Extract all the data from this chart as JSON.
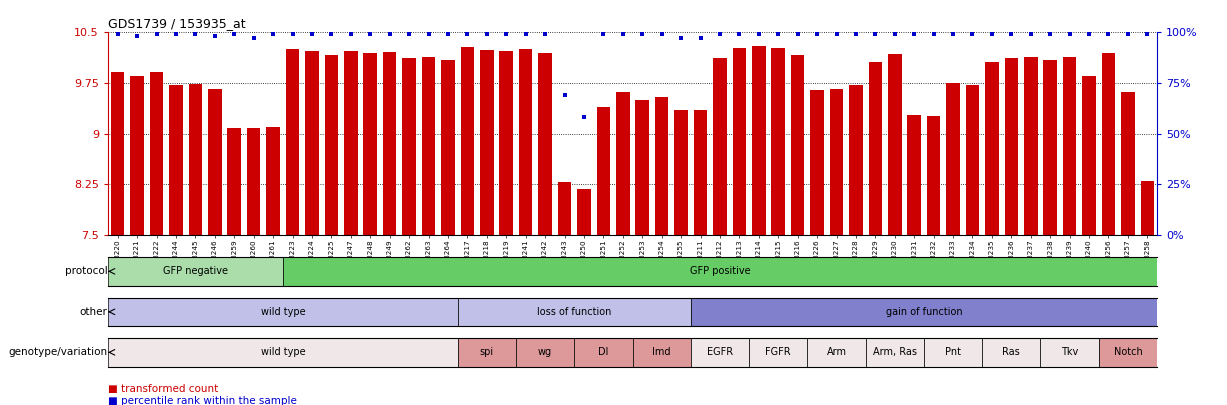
{
  "title": "GDS1739 / 153935_at",
  "sample_ids": [
    "GSM88220",
    "GSM88221",
    "GSM88222",
    "GSM88244",
    "GSM88245",
    "GSM88246",
    "GSM88259",
    "GSM88260",
    "GSM88261",
    "GSM88223",
    "GSM88224",
    "GSM88225",
    "GSM88247",
    "GSM88248",
    "GSM88249",
    "GSM88262",
    "GSM88263",
    "GSM88264",
    "GSM88217",
    "GSM88218",
    "GSM88219",
    "GSM88241",
    "GSM88242",
    "GSM88243",
    "GSM88250",
    "GSM88251",
    "GSM88252",
    "GSM88253",
    "GSM88254",
    "GSM88255",
    "GSM88211",
    "GSM88212",
    "GSM88213",
    "GSM88214",
    "GSM88215",
    "GSM88216",
    "GSM88226",
    "GSM88227",
    "GSM88228",
    "GSM88229",
    "GSM88230",
    "GSM88231",
    "GSM88232",
    "GSM88233",
    "GSM88234",
    "GSM88235",
    "GSM88236",
    "GSM88237",
    "GSM88238",
    "GSM88239",
    "GSM88240",
    "GSM88256",
    "GSM88257",
    "GSM88258"
  ],
  "bar_values": [
    9.92,
    9.86,
    9.91,
    9.72,
    9.74,
    9.66,
    9.09,
    9.08,
    9.1,
    10.25,
    10.22,
    10.16,
    10.23,
    10.19,
    10.21,
    10.12,
    10.14,
    10.09,
    10.28,
    10.24,
    10.23,
    10.26,
    10.2,
    8.28,
    8.18,
    9.4,
    9.62,
    9.5,
    9.54,
    9.35,
    9.35,
    10.12,
    10.27,
    10.3,
    10.27,
    10.16,
    9.65,
    9.66,
    9.72,
    10.06,
    10.18,
    9.28,
    9.26,
    9.75,
    9.72,
    10.06,
    10.12,
    10.14,
    10.09,
    10.13,
    9.86,
    10.19,
    9.62,
    8.3
  ],
  "percentile_values": [
    99,
    98,
    99,
    99,
    99,
    98,
    99,
    97,
    99,
    99,
    99,
    99,
    99,
    99,
    99,
    99,
    99,
    99,
    99,
    99,
    99,
    99,
    99,
    69,
    58,
    99,
    99,
    99,
    99,
    97,
    97,
    99,
    99,
    99,
    99,
    99,
    99,
    99,
    99,
    99,
    99,
    99,
    99,
    99,
    99,
    99,
    99,
    99,
    99,
    99,
    99,
    99,
    99,
    99
  ],
  "bar_color": "#cc0000",
  "percentile_color": "#0000cc",
  "y_min": 7.5,
  "y_max": 10.5,
  "y_ticks": [
    7.5,
    8.25,
    9.0,
    9.75,
    10.5
  ],
  "y_tick_labels": [
    "7.5",
    "8.25",
    "9",
    "9.75",
    "10.5"
  ],
  "y2_ticks": [
    0,
    25,
    50,
    75,
    100
  ],
  "y2_tick_labels": [
    "0%",
    "25%",
    "50%",
    "75%",
    "100%"
  ],
  "protocol_groups": [
    {
      "label": "GFP negative",
      "start": 0,
      "end": 9,
      "color": "#aaddaa"
    },
    {
      "label": "GFP positive",
      "start": 9,
      "end": 54,
      "color": "#66cc66"
    }
  ],
  "other_groups": [
    {
      "label": "wild type",
      "start": 0,
      "end": 18,
      "color": "#c0c0e8"
    },
    {
      "label": "loss of function",
      "start": 18,
      "end": 30,
      "color": "#c0c0e8"
    },
    {
      "label": "gain of function",
      "start": 30,
      "end": 54,
      "color": "#8080cc"
    }
  ],
  "genotype_groups": [
    {
      "label": "wild type",
      "start": 0,
      "end": 18,
      "color": "#f0e8e8"
    },
    {
      "label": "spi",
      "start": 18,
      "end": 21,
      "color": "#dd9999"
    },
    {
      "label": "wg",
      "start": 21,
      "end": 24,
      "color": "#dd9999"
    },
    {
      "label": "Dl",
      "start": 24,
      "end": 27,
      "color": "#dd9999"
    },
    {
      "label": "Imd",
      "start": 27,
      "end": 30,
      "color": "#dd9999"
    },
    {
      "label": "EGFR",
      "start": 30,
      "end": 33,
      "color": "#f0e8e8"
    },
    {
      "label": "FGFR",
      "start": 33,
      "end": 36,
      "color": "#f0e8e8"
    },
    {
      "label": "Arm",
      "start": 36,
      "end": 39,
      "color": "#f0e8e8"
    },
    {
      "label": "Arm, Ras",
      "start": 39,
      "end": 42,
      "color": "#f0e8e8"
    },
    {
      "label": "Pnt",
      "start": 42,
      "end": 45,
      "color": "#f0e8e8"
    },
    {
      "label": "Ras",
      "start": 45,
      "end": 48,
      "color": "#f0e8e8"
    },
    {
      "label": "Tkv",
      "start": 48,
      "end": 51,
      "color": "#f0e8e8"
    },
    {
      "label": "Notch",
      "start": 51,
      "end": 54,
      "color": "#dd9999"
    }
  ],
  "legend_red_text": "transformed count",
  "legend_blue_text": "percentile rank within the sample",
  "n_samples": 54
}
